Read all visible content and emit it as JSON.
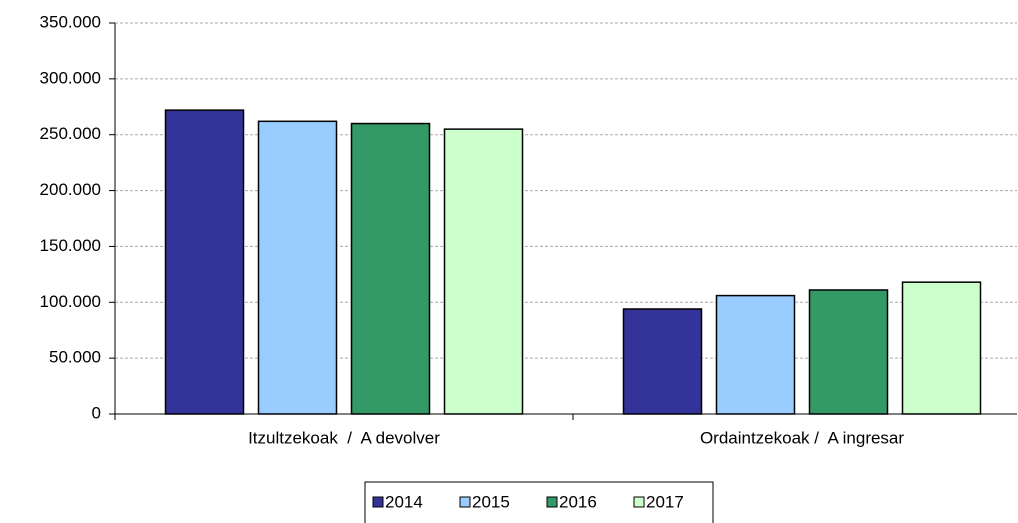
{
  "chart_data": {
    "type": "bar",
    "categories": [
      "Itzultzekoak  /  A devolver",
      "Ordaintzekoak /  A ingresar"
    ],
    "series": [
      {
        "name": "2014",
        "color": "#333399",
        "values": [
          272000,
          94000
        ]
      },
      {
        "name": "2015",
        "color": "#99ccff",
        "values": [
          262000,
          106000
        ]
      },
      {
        "name": "2016",
        "color": "#339966",
        "values": [
          260000,
          111000
        ]
      },
      {
        "name": "2017",
        "color": "#ccffcc",
        "values": [
          255000,
          118000
        ]
      }
    ],
    "ylim": [
      0,
      350000
    ],
    "yticks": [
      0,
      {
        "value": 50000,
        "label": "50.000"
      },
      {
        "value": 100000,
        "label": "100.000"
      },
      {
        "value": 150000,
        "label": "150.000"
      },
      {
        "value": 200000,
        "label": "200.000"
      },
      {
        "value": 250000,
        "label": "250.000"
      },
      {
        "value": 300000,
        "label": "300.000"
      },
      {
        "value": 350000,
        "label": "350.000"
      }
    ],
    "grid": true,
    "legend": "bottom"
  }
}
